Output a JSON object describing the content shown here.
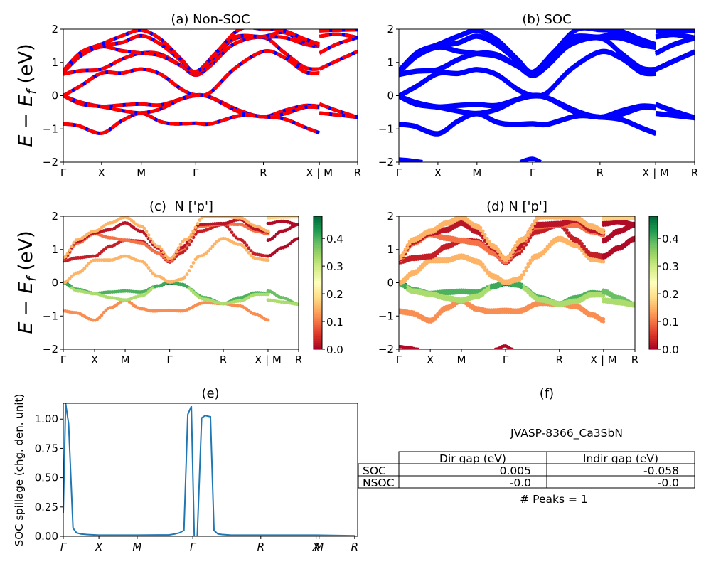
{
  "chart_data": [
    {
      "id": "a",
      "type": "line",
      "title": "(a) Non-SOC",
      "ylabel": "E − E_f (eV)",
      "ylim": [
        -2,
        2
      ],
      "yticks": [
        "−2",
        "−1",
        "0",
        "1",
        "2"
      ],
      "ytick_values": [
        -2,
        -1,
        0,
        1,
        2
      ],
      "xtick_labels": [
        "Γ",
        "X",
        "M",
        "Γ",
        "R",
        "X | M",
        "R"
      ],
      "xtick_positions": [
        0,
        0.13,
        0.265,
        0.45,
        0.68,
        0.87,
        1.0
      ],
      "series_style": "red line with blue dashes",
      "colors": {
        "line": "#ff0000",
        "dash": "#0000ff"
      },
      "bands": [
        {
          "name": "band-1",
          "points": [
            [
              0,
              -0.85
            ],
            [
              0.05,
              -0.9
            ],
            [
              0.13,
              -1.13
            ],
            [
              0.2,
              -0.75
            ],
            [
              0.265,
              -0.53
            ],
            [
              0.33,
              -0.78
            ],
            [
              0.38,
              -0.85
            ],
            [
              0.45,
              -0.83
            ],
            [
              0.5,
              -0.85
            ],
            [
              0.6,
              -0.6
            ],
            [
              0.68,
              -0.63
            ],
            [
              0.75,
              -0.7
            ],
            [
              0.82,
              -0.95
            ],
            [
              0.87,
              -1.12
            ]
          ]
        },
        {
          "name": "band-2",
          "points": [
            [
              0,
              0.0
            ],
            [
              0.06,
              -0.2
            ],
            [
              0.13,
              -0.32
            ],
            [
              0.2,
              -0.28
            ],
            [
              0.265,
              -0.25
            ],
            [
              0.33,
              -0.28
            ],
            [
              0.4,
              -0.1
            ],
            [
              0.45,
              0.0
            ],
            [
              0.5,
              -0.05
            ],
            [
              0.6,
              -0.45
            ],
            [
              0.68,
              -0.63
            ],
            [
              0.75,
              -0.45
            ],
            [
              0.82,
              -0.3
            ],
            [
              0.87,
              -0.32
            ]
          ]
        },
        {
          "name": "band-3",
          "points": [
            [
              0,
              0.0
            ],
            [
              0.06,
              -0.25
            ],
            [
              0.13,
              -0.33
            ],
            [
              0.2,
              -0.45
            ],
            [
              0.265,
              -0.52
            ],
            [
              0.33,
              -0.4
            ],
            [
              0.4,
              -0.1
            ],
            [
              0.45,
              0.02
            ],
            [
              0.5,
              -0.05
            ],
            [
              0.6,
              -0.5
            ],
            [
              0.68,
              -0.63
            ],
            [
              0.75,
              -0.55
            ],
            [
              0.82,
              -0.35
            ],
            [
              0.87,
              -0.35
            ]
          ]
        },
        {
          "name": "band-4",
          "points": [
            [
              0,
              0.0
            ],
            [
              0.06,
              0.3
            ],
            [
              0.13,
              0.68
            ],
            [
              0.2,
              0.68
            ],
            [
              0.265,
              0.8
            ],
            [
              0.33,
              0.65
            ],
            [
              0.4,
              0.2
            ],
            [
              0.45,
              0.02
            ],
            [
              0.5,
              0.1
            ],
            [
              0.58,
              0.8
            ],
            [
              0.68,
              1.33
            ],
            [
              0.75,
              1.15
            ],
            [
              0.82,
              0.72
            ],
            [
              0.87,
              0.68
            ]
          ]
        },
        {
          "name": "band-5",
          "points": [
            [
              0,
              0.65
            ],
            [
              0.06,
              0.75
            ],
            [
              0.13,
              0.8
            ],
            [
              0.2,
              1.1
            ],
            [
              0.265,
              1.28
            ],
            [
              0.33,
              1.25
            ],
            [
              0.4,
              0.9
            ],
            [
              0.45,
              0.62
            ],
            [
              0.5,
              0.9
            ],
            [
              0.58,
              1.55
            ],
            [
              0.68,
              1.75
            ],
            [
              0.75,
              1.3
            ],
            [
              0.82,
              0.85
            ],
            [
              0.87,
              0.8
            ]
          ]
        },
        {
          "name": "band-6",
          "points": [
            [
              0,
              0.7
            ],
            [
              0.06,
              1.2
            ],
            [
              0.13,
              1.47
            ],
            [
              0.2,
              1.35
            ],
            [
              0.265,
              1.28
            ],
            [
              0.33,
              1.2
            ],
            [
              0.4,
              0.9
            ],
            [
              0.45,
              0.65
            ],
            [
              0.5,
              1.0
            ],
            [
              0.58,
              1.7
            ],
            [
              0.68,
              1.76
            ],
            [
              0.75,
              1.75
            ],
            [
              0.82,
              1.55
            ],
            [
              0.87,
              1.47
            ]
          ]
        },
        {
          "name": "band-7",
          "points": [
            [
              0,
              0.72
            ],
            [
              0.06,
              1.25
            ],
            [
              0.13,
              1.5
            ],
            [
              0.2,
              1.6
            ],
            [
              0.265,
              1.8
            ],
            [
              0.33,
              1.55
            ],
            [
              0.4,
              1.05
            ],
            [
              0.45,
              0.7
            ],
            [
              0.5,
              1.05
            ],
            [
              0.58,
              1.75
            ],
            [
              0.68,
              1.78
            ],
            [
              0.75,
              1.9
            ],
            [
              0.82,
              1.6
            ],
            [
              0.87,
              1.52
            ]
          ]
        },
        {
          "name": "band-8",
          "points": [
            [
              0,
              0.75
            ],
            [
              0.06,
              1.3
            ],
            [
              0.13,
              1.55
            ],
            [
              0.2,
              1.8
            ],
            [
              0.265,
              1.97
            ],
            [
              0.33,
              1.7
            ],
            [
              0.4,
              1.1
            ],
            [
              0.45,
              0.72
            ],
            [
              0.52,
              1.3
            ],
            [
              0.6,
              2.0
            ],
            [
              0.68,
              2.0
            ],
            [
              0.75,
              1.95
            ],
            [
              0.82,
              1.7
            ],
            [
              0.87,
              1.55
            ]
          ]
        },
        {
          "name": "band-9",
          "points": [
            [
              0.87,
              -0.25
            ],
            [
              0.93,
              -0.45
            ],
            [
              1.0,
              -0.65
            ]
          ]
        },
        {
          "name": "band-10",
          "points": [
            [
              0.87,
              -0.52
            ],
            [
              0.93,
              -0.58
            ],
            [
              1.0,
              -0.65
            ]
          ]
        },
        {
          "name": "band-11",
          "points": [
            [
              0.87,
              0.8
            ],
            [
              0.93,
              1.05
            ],
            [
              1.0,
              1.33
            ]
          ]
        },
        {
          "name": "band-12",
          "points": [
            [
              0.87,
              1.28
            ],
            [
              0.93,
              1.55
            ],
            [
              1.0,
              1.75
            ]
          ]
        },
        {
          "name": "band-13",
          "points": [
            [
              0.87,
              1.78
            ],
            [
              0.93,
              1.85
            ],
            [
              1.0,
              1.75
            ]
          ]
        },
        {
          "name": "band-14",
          "points": [
            [
              0.87,
              1.95
            ],
            [
              0.93,
              1.97
            ],
            [
              1.0,
              1.98
            ]
          ]
        }
      ]
    },
    {
      "id": "b",
      "type": "line",
      "title": "(b) SOC",
      "ylim": [
        -2,
        2
      ],
      "yticks": [
        "−2",
        "−1",
        "0",
        "1",
        "2"
      ],
      "ytick_values": [
        -2,
        -1,
        0,
        1,
        2
      ],
      "xtick_labels": [
        "Γ",
        "X",
        "M",
        "Γ",
        "R",
        "X | M",
        "R"
      ],
      "xtick_positions": [
        0,
        0.132,
        0.264,
        0.452,
        0.68,
        0.868,
        1.0
      ],
      "colors": {
        "line": "#0000ff"
      },
      "note": "same band structure as (a) with spin-orbit splitting; extra bands near −2 eV at Γ",
      "extra_bands": [
        {
          "name": "low-band-gamma-left",
          "points": [
            [
              0,
              -1.92
            ],
            [
              0.04,
              -1.95
            ],
            [
              0.08,
              -2.0
            ]
          ]
        },
        {
          "name": "low-band-gamma-mid",
          "points": [
            [
              0.41,
              -2.0
            ],
            [
              0.45,
              -1.9
            ],
            [
              0.48,
              -2.0
            ]
          ]
        }
      ]
    },
    {
      "id": "c",
      "type": "scatter",
      "title": "(c)  N ['p']",
      "ylabel": "E − E_f (eV)",
      "ylim": [
        -2,
        2
      ],
      "yticks": [
        "−2",
        "−1",
        "0",
        "1",
        "2"
      ],
      "ytick_values": [
        -2,
        -1,
        0,
        1,
        2
      ],
      "xtick_labels": [
        "Γ",
        "X",
        "M",
        "Γ",
        "R",
        "X | M",
        "R"
      ],
      "xtick_positions": [
        0,
        0.133,
        0.263,
        0.452,
        0.68,
        0.87,
        1.0
      ],
      "colormap": "RdYlGn",
      "colorbar": {
        "range": [
          0.0,
          0.48
        ],
        "ticks": [
          "0.0",
          "0.1",
          "0.2",
          "0.3",
          "0.4"
        ],
        "tick_values": [
          0,
          0.1,
          0.2,
          0.3,
          0.4
        ]
      },
      "band_weights": [
        0.12,
        0.4,
        0.33,
        0.15,
        0.03,
        0.1,
        0.02,
        0.15,
        0.38,
        0.33,
        0.01,
        0.01,
        0.01,
        0.18
      ]
    },
    {
      "id": "d",
      "type": "scatter",
      "title": "(d) N ['p']",
      "ylim": [
        -2,
        2
      ],
      "yticks": [
        "−2",
        "−1",
        "0",
        "1",
        "2"
      ],
      "ytick_values": [
        -2,
        -1,
        0,
        1,
        2
      ],
      "xtick_labels": [
        "Γ",
        "X",
        "M",
        "Γ",
        "R",
        "X | M",
        "R"
      ],
      "xtick_positions": [
        0,
        0.133,
        0.265,
        0.452,
        0.68,
        0.867,
        1.0
      ],
      "colormap": "RdYlGn",
      "colorbar": {
        "range": [
          0.0,
          0.48
        ],
        "ticks": [
          "0.0",
          "0.1",
          "0.2",
          "0.3",
          "0.4"
        ],
        "tick_values": [
          0,
          0.1,
          0.2,
          0.3,
          0.4
        ]
      }
    },
    {
      "id": "e",
      "type": "line",
      "title": "(e)",
      "ylabel": "SOC spillage (chg. den. unit)",
      "ylim": [
        0,
        1.135
      ],
      "yticks": [
        "0.00",
        "0.25",
        "0.50",
        "0.75",
        "1.00"
      ],
      "ytick_values": [
        0,
        0.25,
        0.5,
        0.75,
        1.0
      ],
      "xtick_labels": [
        "Γ",
        "X",
        "M",
        "Γ",
        "R",
        "X",
        "M",
        "R"
      ],
      "xtick_positions": [
        0,
        0.121,
        0.251,
        0.44,
        0.671,
        0.859,
        0.869,
        0.99
      ],
      "color": "#1f77b4",
      "x": [
        0,
        0.008,
        0.018,
        0.033,
        0.045,
        0.06,
        0.08,
        0.12,
        0.25,
        0.36,
        0.38,
        0.395,
        0.41,
        0.423,
        0.435,
        0.445,
        0.455,
        0.47,
        0.482,
        0.5,
        0.512,
        0.525,
        0.54,
        0.57,
        0.67,
        0.86,
        0.99
      ],
      "y": [
        0.2,
        1.135,
        0.96,
        0.07,
        0.03,
        0.02,
        0.015,
        0.01,
        0.01,
        0.012,
        0.02,
        0.03,
        0.05,
        1.04,
        1.11,
        0.0,
        0.0,
        1.01,
        1.03,
        1.02,
        0.05,
        0.02,
        0.015,
        0.01,
        0.01,
        0.01,
        0.005
      ]
    },
    {
      "id": "f",
      "type": "table",
      "title": "(f)",
      "subtitle": "JVASP-8366_Ca3SbN",
      "columns": [
        "Dir gap (eV)",
        "Indir gap (eV)"
      ],
      "rows": [
        {
          "label": "SOC",
          "values": [
            "0.005",
            "-0.058"
          ]
        },
        {
          "label": "NSOC",
          "values": [
            "-0.0",
            "-0.0"
          ]
        }
      ],
      "footer": "# Peaks = 1"
    }
  ]
}
